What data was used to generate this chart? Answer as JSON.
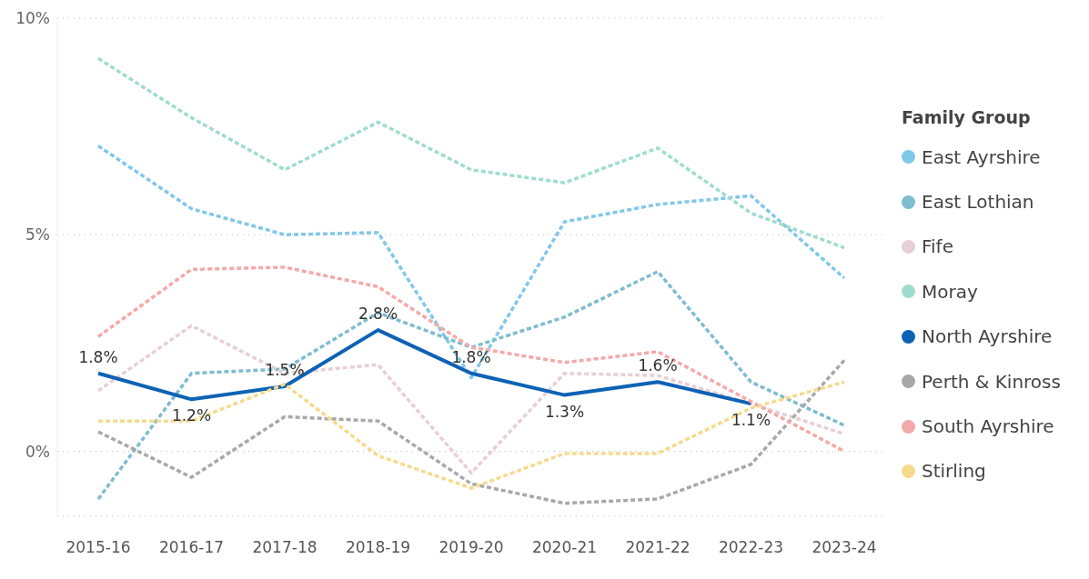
{
  "chart_data": {
    "type": "line",
    "legend_title": "Family Group",
    "legend": "right",
    "grid": "y",
    "marker": "none",
    "categories": [
      "2015-16",
      "2016-17",
      "2017-18",
      "2018-19",
      "2019-20",
      "2020-21",
      "2021-22",
      "2022-23",
      "2023-24"
    ],
    "ylim": [
      -1.5,
      10
    ],
    "yticks": [
      {
        "value": 0,
        "label": "0%"
      },
      {
        "value": 5,
        "label": "5%"
      },
      {
        "value": 10,
        "label": "10%"
      }
    ],
    "series": [
      {
        "name": "East Ayrshire",
        "color": "#80c8e8",
        "line_style": "dashed",
        "values": [
          7.05,
          5.6,
          5.0,
          5.05,
          1.7,
          5.3,
          5.7,
          5.9,
          4.0
        ]
      },
      {
        "name": "East Lothian",
        "color": "#7fbcd0",
        "line_style": "dashed",
        "values": [
          -1.1,
          1.8,
          1.9,
          3.2,
          2.4,
          3.1,
          4.15,
          1.6,
          0.6
        ]
      },
      {
        "name": "Fife",
        "color": "#e8cfd3",
        "line_style": "dashed",
        "values": [
          1.4,
          2.9,
          1.8,
          2.0,
          -0.5,
          1.8,
          1.75,
          1.1,
          0.4
        ]
      },
      {
        "name": "Moray",
        "color": "#9fdcd0",
        "line_style": "dashed",
        "values": [
          9.07,
          7.7,
          6.5,
          7.6,
          6.5,
          6.2,
          7.0,
          5.5,
          4.7
        ]
      },
      {
        "name": "North Ayrshire",
        "color": "#0d62b5",
        "line_style": "solid",
        "values": [
          1.8,
          1.2,
          1.5,
          2.8,
          1.8,
          1.3,
          1.6,
          1.1,
          null
        ],
        "value_labels": [
          "1.8%",
          "1.2%",
          "1.5%",
          "2.8%",
          "1.8%",
          "1.3%",
          "1.6%",
          "1.1%",
          null
        ]
      },
      {
        "name": "Perth & Kinross",
        "color": "#a8a8a8",
        "line_style": "dashed",
        "values": [
          0.45,
          -0.6,
          0.8,
          0.7,
          -0.75,
          -1.2,
          -1.1,
          -0.3,
          2.1
        ]
      },
      {
        "name": "South Ayrshire",
        "color": "#f4a9a9",
        "line_style": "dashed",
        "values": [
          2.65,
          4.2,
          4.25,
          3.8,
          2.4,
          2.05,
          2.3,
          1.15,
          0.0
        ]
      },
      {
        "name": "Stirling",
        "color": "#f6da8c",
        "line_style": "dashed",
        "values": [
          0.7,
          0.7,
          1.55,
          -0.1,
          -0.85,
          -0.05,
          -0.05,
          1.0,
          1.6
        ]
      }
    ]
  }
}
